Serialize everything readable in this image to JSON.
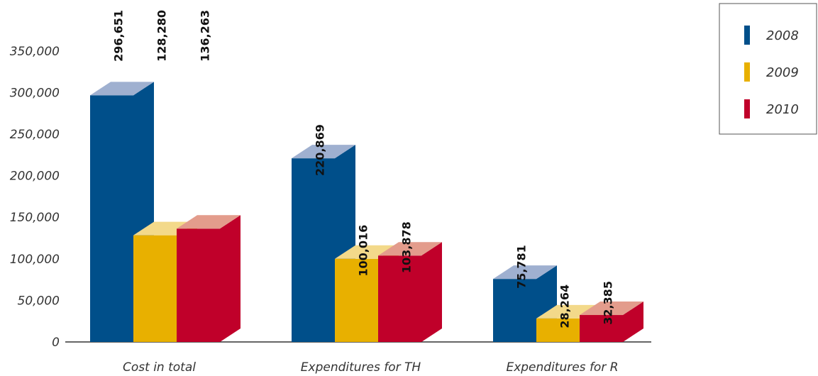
{
  "chart_data": {
    "type": "bar",
    "categories": [
      "Cost in total",
      "Expenditures for TH",
      "Expenditures for R"
    ],
    "series": [
      {
        "name": "2008",
        "color": "#004f8a",
        "topColor": "#9fb0d0",
        "sideColor": "#004f8a",
        "values": [
          296651,
          220869,
          75781
        ],
        "labels": [
          "296,651",
          "220,869",
          "75,781"
        ]
      },
      {
        "name": "2009",
        "color": "#e8b000",
        "topColor": "#f3d98a",
        "sideColor": "#e8b000",
        "values": [
          128280,
          100016,
          28264
        ],
        "labels": [
          "128,280",
          "100,016",
          "28,264"
        ]
      },
      {
        "name": "2010",
        "color": "#c0002a",
        "topColor": "#e39c8c",
        "sideColor": "#c0002a",
        "values": [
          136263,
          103878,
          32385
        ],
        "labels": [
          "136,263",
          "103,878",
          "32,385"
        ]
      }
    ],
    "yticks": [
      0,
      50000,
      100000,
      150000,
      200000,
      250000,
      300000,
      350000
    ],
    "ytick_labels": [
      "0",
      "50,000",
      "100,000",
      "150,000",
      "200,000",
      "250,000",
      "300,000",
      "350,000"
    ],
    "ylim": [
      0,
      350000
    ],
    "grid": false,
    "legend_position": "top-right",
    "title": "",
    "xlabel": "",
    "ylabel": ""
  }
}
